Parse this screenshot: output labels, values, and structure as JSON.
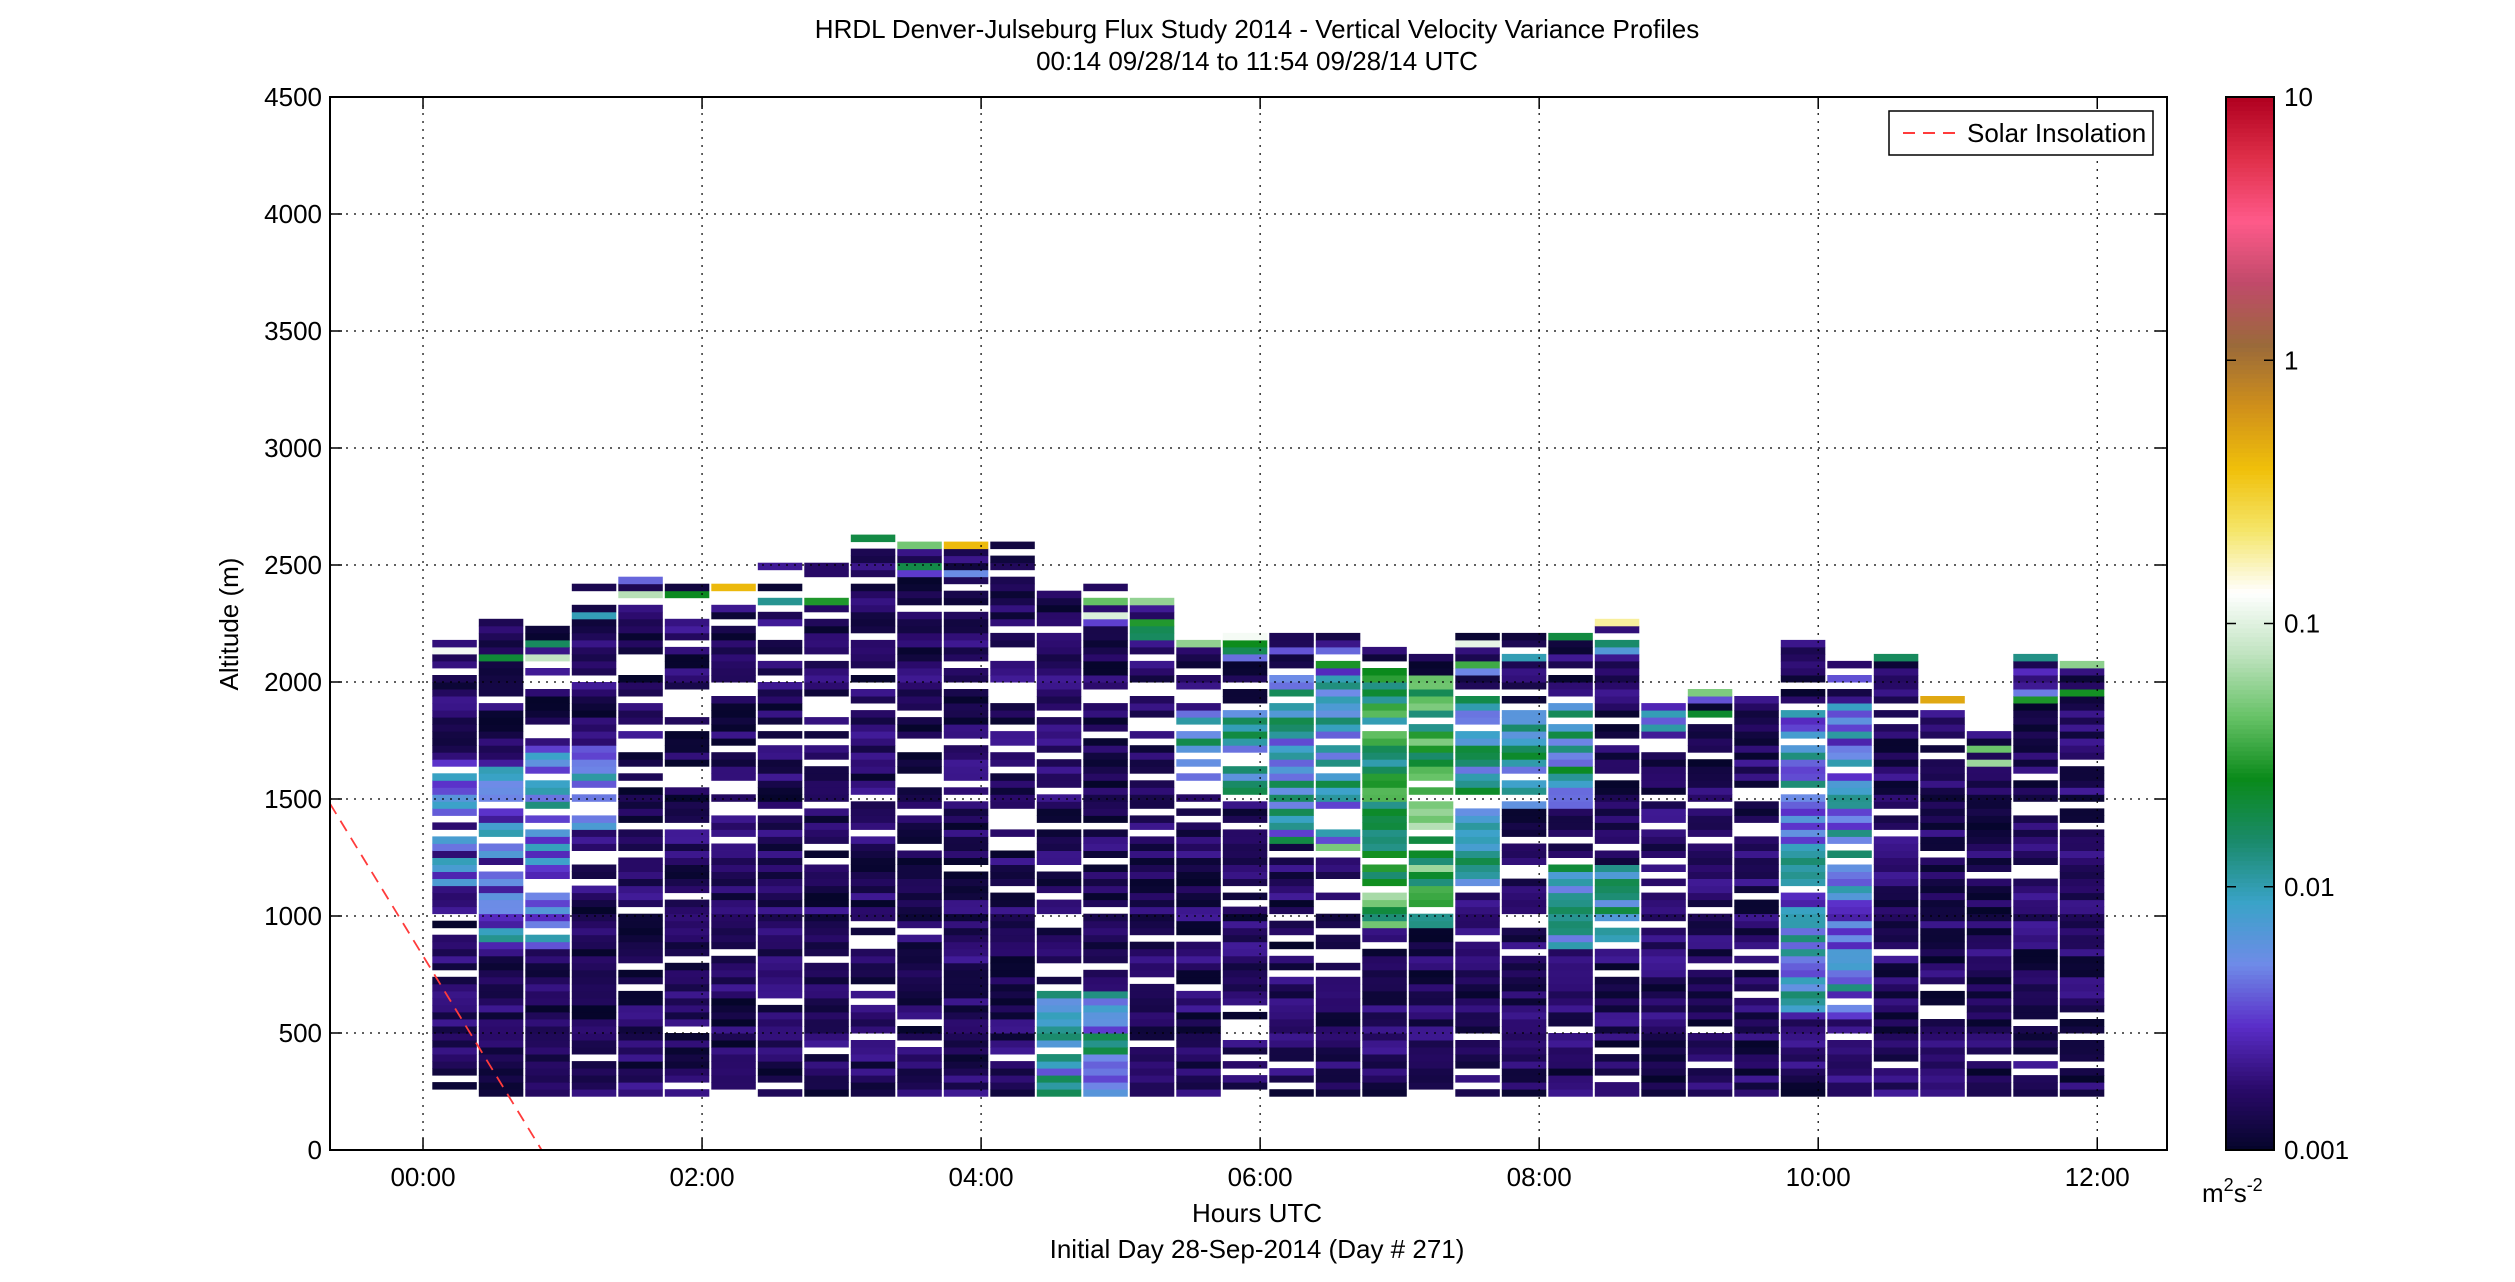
{
  "chart_data": {
    "type": "heatmap",
    "title": "HRDL Denver-Julseburg Flux Study 2014 - Vertical Velocity Variance Profiles",
    "subtitle": "00:14 09/28/14 to 11:54 09/28/14  UTC",
    "xlabel": "Hours UTC",
    "xlabel2": "Initial Day 28-Sep-2014 (Day # 271)",
    "ylabel": "Altitude (m)",
    "xlim": [
      -0.6667,
      12.5
    ],
    "ylim": [
      0,
      4500
    ],
    "x_ticks": [
      0,
      2,
      4,
      6,
      8,
      10,
      12
    ],
    "x_tick_labels": [
      "00:00",
      "02:00",
      "04:00",
      "06:00",
      "08:00",
      "10:00",
      "12:00"
    ],
    "y_ticks": [
      0,
      500,
      1000,
      1500,
      2000,
      2500,
      3000,
      3500,
      4000,
      4500
    ],
    "y_tick_labels": [
      "0",
      "500",
      "1000",
      "1500",
      "2000",
      "2500",
      "3000",
      "3500",
      "4000",
      "4500"
    ],
    "grid": true,
    "legend": {
      "position": "top-right",
      "entries": [
        "Solar Insolation"
      ]
    },
    "colorbar": {
      "scale": "log",
      "ticks": [
        0.001,
        0.01,
        0.1,
        1,
        10
      ],
      "tick_labels": [
        "0.001",
        "0.01",
        "0.1",
        "1",
        "10"
      ],
      "units": "m",
      "units_sup1": "2",
      "units_mid": "s",
      "units_sup2": "-2"
    },
    "profiles": {
      "start_hour": 0.233,
      "step_hours": 0.3333,
      "bin_bottom_m": 230,
      "bin_height_m": 30,
      "tops_m": [
        2180,
        2260,
        2230,
        2420,
        2450,
        2400,
        2420,
        2510,
        2500,
        2610,
        2580,
        2580,
        2640,
        2420,
        2420,
        2340,
        2210,
        2210,
        2190,
        2190,
        2180,
        2120,
        2210,
        2200,
        2210,
        2270,
        1900,
        1950,
        1970,
        2210,
        2100,
        2120,
        1920,
        1810,
        2100,
        2090
      ],
      "strong_rows": [
        {
          "hour": 0.4,
          "from": 1100,
          "to": 1650,
          "value": 0.004
        },
        {
          "hour": 0.733,
          "from": 850,
          "to": 1450,
          "value": 0.005
        },
        {
          "hour": 1.067,
          "from": 1350,
          "to": 1700,
          "value": 0.008
        },
        {
          "hour": 4.733,
          "from": 230,
          "to": 650,
          "value": 0.008
        },
        {
          "hour": 5.733,
          "from": 1500,
          "to": 1850,
          "value": 0.01
        },
        {
          "hour": 6.4,
          "from": 1300,
          "to": 2000,
          "value": 0.008
        },
        {
          "hour": 6.733,
          "from": 1250,
          "to": 2000,
          "value": 0.02
        },
        {
          "hour": 7.067,
          "from": 950,
          "to": 2000,
          "value": 0.03
        },
        {
          "hour": 7.4,
          "from": 1100,
          "to": 1950,
          "value": 0.01
        },
        {
          "hour": 8.067,
          "from": 1450,
          "to": 1900,
          "value": 0.01
        },
        {
          "hour": 8.4,
          "from": 850,
          "to": 1200,
          "value": 0.01
        },
        {
          "hour": 10.067,
          "from": 550,
          "to": 1900,
          "value": 0.006
        }
      ]
    },
    "solar_insolation": {
      "x": [
        -0.6667,
        0.85
      ],
      "y": [
        1480,
        0
      ]
    }
  },
  "colors": {
    "background": "#ffffff",
    "axis": "#000000",
    "grid": "#000000",
    "solar_line": "#ff3b3b",
    "low": "#0a0a3a"
  },
  "colormap_stops": [
    "#05052a",
    "#2a0a6a",
    "#5a2dc8",
    "#6f8be8",
    "#3aa3c8",
    "#1a8a6a",
    "#0a8a1a",
    "#67c267",
    "#bfe3bf",
    "#ffffff",
    "#f5e66a",
    "#f0c00a",
    "#d0901a",
    "#9a6a3a",
    "#c04a6a",
    "#ff5a8a",
    "#e0304a",
    "#b00020"
  ]
}
